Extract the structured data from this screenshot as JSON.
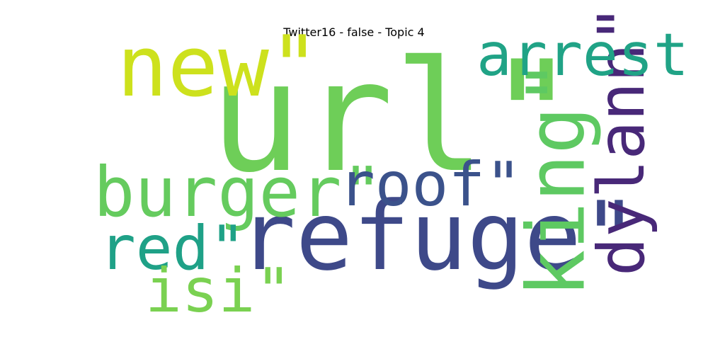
{
  "chart_data": {
    "type": "wordcloud",
    "title": "Twitter16 - false - Topic 4",
    "words": [
      {
        "text": "url\"",
        "weight": 1.0,
        "color": "#6ece58",
        "orientation": "horizontal"
      },
      {
        "text": "refuge\"",
        "weight": 0.62,
        "color": "#3e4989",
        "orientation": "horizontal"
      },
      {
        "text": "new\"",
        "weight": 0.55,
        "color": "#cde11d",
        "orientation": "horizontal"
      },
      {
        "text": "king\"",
        "weight": 0.52,
        "color": "#5ec962",
        "orientation": "vertical"
      },
      {
        "text": "burger\"",
        "weight": 0.45,
        "color": "#65cb5e",
        "orientation": "horizontal"
      },
      {
        "text": "dylann\"",
        "weight": 0.42,
        "color": "#482878",
        "orientation": "vertical"
      },
      {
        "text": "arrest",
        "weight": 0.42,
        "color": "#20a386",
        "orientation": "horizontal"
      },
      {
        "text": "roof\"",
        "weight": 0.4,
        "color": "#3b528b",
        "orientation": "horizontal"
      },
      {
        "text": "red\"",
        "weight": 0.4,
        "color": "#1fa187",
        "orientation": "horizontal"
      },
      {
        "text": "isi\"",
        "weight": 0.4,
        "color": "#7ad151",
        "orientation": "horizontal"
      }
    ]
  }
}
